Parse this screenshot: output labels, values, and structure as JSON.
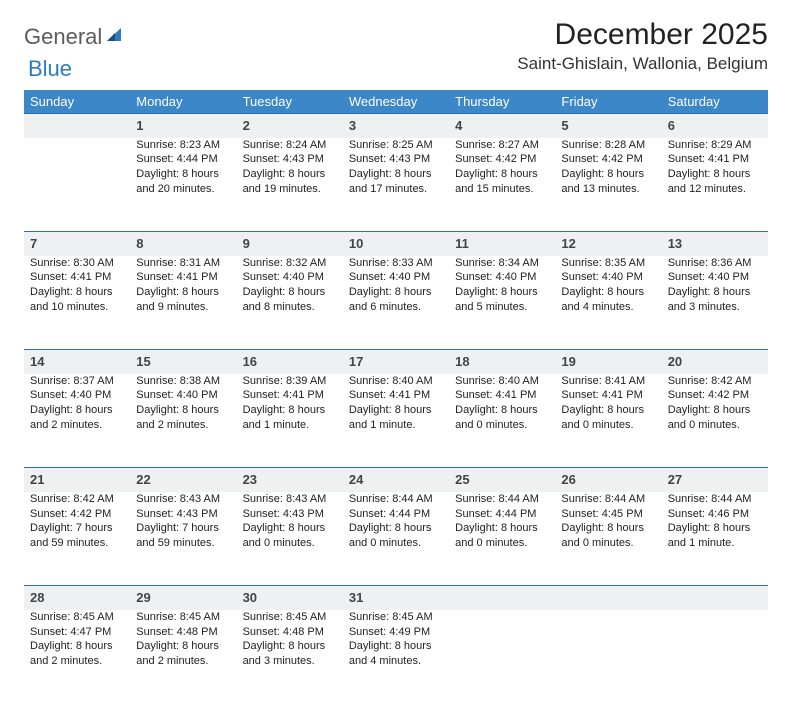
{
  "logo": {
    "word1": "General",
    "word2": "Blue"
  },
  "title": "December 2025",
  "location": "Saint-Ghislain, Wallonia, Belgium",
  "day_headers": [
    "Sunday",
    "Monday",
    "Tuesday",
    "Wednesday",
    "Thursday",
    "Friday",
    "Saturday"
  ],
  "colors": {
    "header_bg": "#3b87c8",
    "rule": "#2f6ea8",
    "daynum_bg": "#eef0f1",
    "logo_grey": "#5c5c5c",
    "logo_blue": "#2f7bbf"
  },
  "weeks": [
    {
      "nums": [
        "",
        "1",
        "2",
        "3",
        "4",
        "5",
        "6"
      ],
      "cells": [
        "",
        "Sunrise: 8:23 AM\nSunset: 4:44 PM\nDaylight: 8 hours and 20 minutes.",
        "Sunrise: 8:24 AM\nSunset: 4:43 PM\nDaylight: 8 hours and 19 minutes.",
        "Sunrise: 8:25 AM\nSunset: 4:43 PM\nDaylight: 8 hours and 17 minutes.",
        "Sunrise: 8:27 AM\nSunset: 4:42 PM\nDaylight: 8 hours and 15 minutes.",
        "Sunrise: 8:28 AM\nSunset: 4:42 PM\nDaylight: 8 hours and 13 minutes.",
        "Sunrise: 8:29 AM\nSunset: 4:41 PM\nDaylight: 8 hours and 12 minutes."
      ]
    },
    {
      "nums": [
        "7",
        "8",
        "9",
        "10",
        "11",
        "12",
        "13"
      ],
      "cells": [
        "Sunrise: 8:30 AM\nSunset: 4:41 PM\nDaylight: 8 hours and 10 minutes.",
        "Sunrise: 8:31 AM\nSunset: 4:41 PM\nDaylight: 8 hours and 9 minutes.",
        "Sunrise: 8:32 AM\nSunset: 4:40 PM\nDaylight: 8 hours and 8 minutes.",
        "Sunrise: 8:33 AM\nSunset: 4:40 PM\nDaylight: 8 hours and 6 minutes.",
        "Sunrise: 8:34 AM\nSunset: 4:40 PM\nDaylight: 8 hours and 5 minutes.",
        "Sunrise: 8:35 AM\nSunset: 4:40 PM\nDaylight: 8 hours and 4 minutes.",
        "Sunrise: 8:36 AM\nSunset: 4:40 PM\nDaylight: 8 hours and 3 minutes."
      ]
    },
    {
      "nums": [
        "14",
        "15",
        "16",
        "17",
        "18",
        "19",
        "20"
      ],
      "cells": [
        "Sunrise: 8:37 AM\nSunset: 4:40 PM\nDaylight: 8 hours and 2 minutes.",
        "Sunrise: 8:38 AM\nSunset: 4:40 PM\nDaylight: 8 hours and 2 minutes.",
        "Sunrise: 8:39 AM\nSunset: 4:41 PM\nDaylight: 8 hours and 1 minute.",
        "Sunrise: 8:40 AM\nSunset: 4:41 PM\nDaylight: 8 hours and 1 minute.",
        "Sunrise: 8:40 AM\nSunset: 4:41 PM\nDaylight: 8 hours and 0 minutes.",
        "Sunrise: 8:41 AM\nSunset: 4:41 PM\nDaylight: 8 hours and 0 minutes.",
        "Sunrise: 8:42 AM\nSunset: 4:42 PM\nDaylight: 8 hours and 0 minutes."
      ]
    },
    {
      "nums": [
        "21",
        "22",
        "23",
        "24",
        "25",
        "26",
        "27"
      ],
      "cells": [
        "Sunrise: 8:42 AM\nSunset: 4:42 PM\nDaylight: 7 hours and 59 minutes.",
        "Sunrise: 8:43 AM\nSunset: 4:43 PM\nDaylight: 7 hours and 59 minutes.",
        "Sunrise: 8:43 AM\nSunset: 4:43 PM\nDaylight: 8 hours and 0 minutes.",
        "Sunrise: 8:44 AM\nSunset: 4:44 PM\nDaylight: 8 hours and 0 minutes.",
        "Sunrise: 8:44 AM\nSunset: 4:44 PM\nDaylight: 8 hours and 0 minutes.",
        "Sunrise: 8:44 AM\nSunset: 4:45 PM\nDaylight: 8 hours and 0 minutes.",
        "Sunrise: 8:44 AM\nSunset: 4:46 PM\nDaylight: 8 hours and 1 minute."
      ]
    },
    {
      "nums": [
        "28",
        "29",
        "30",
        "31",
        "",
        "",
        ""
      ],
      "cells": [
        "Sunrise: 8:45 AM\nSunset: 4:47 PM\nDaylight: 8 hours and 2 minutes.",
        "Sunrise: 8:45 AM\nSunset: 4:48 PM\nDaylight: 8 hours and 2 minutes.",
        "Sunrise: 8:45 AM\nSunset: 4:48 PM\nDaylight: 8 hours and 3 minutes.",
        "Sunrise: 8:45 AM\nSunset: 4:49 PM\nDaylight: 8 hours and 4 minutes.",
        "",
        "",
        ""
      ]
    }
  ]
}
